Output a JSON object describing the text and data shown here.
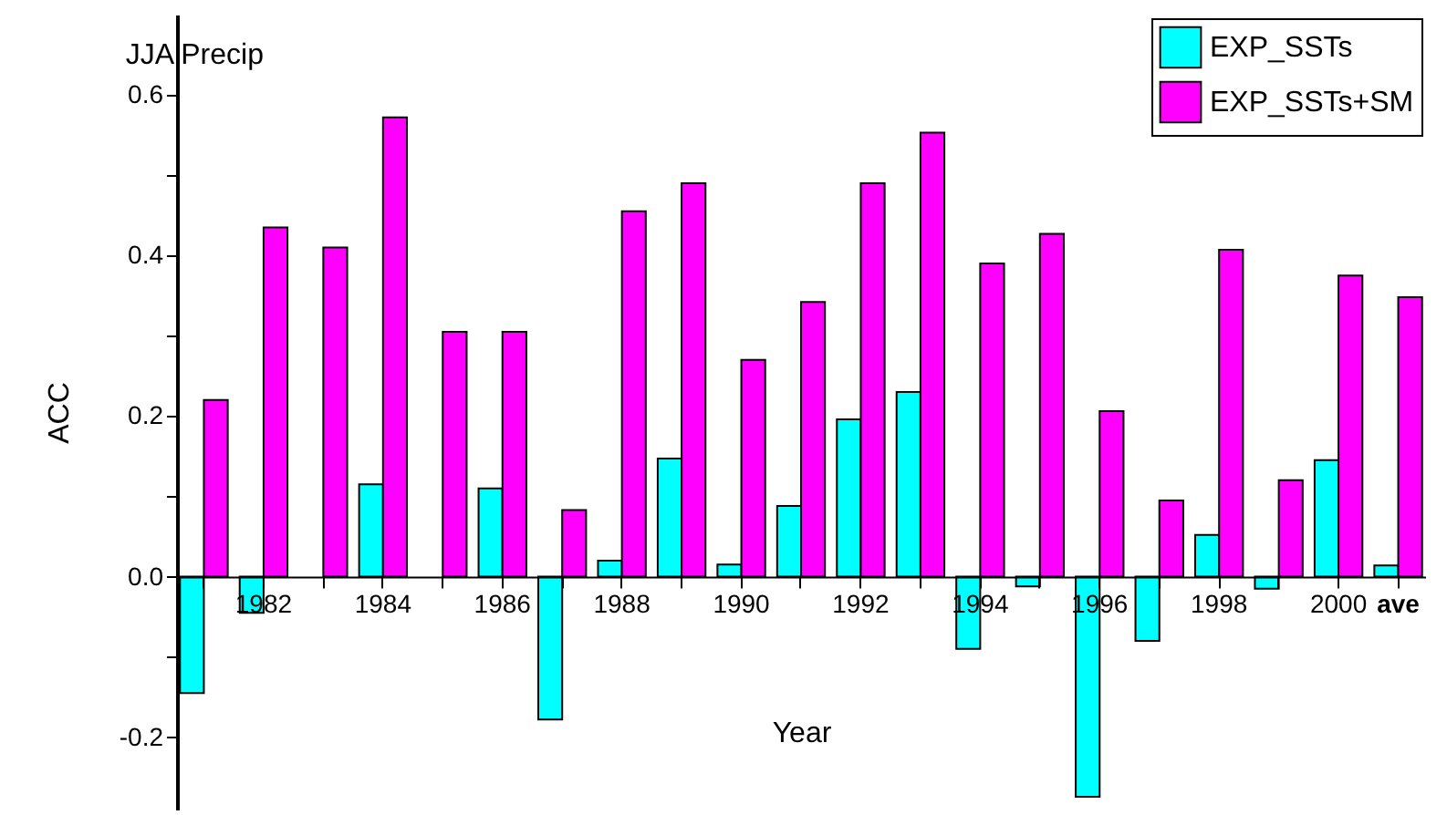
{
  "chart_data": {
    "type": "bar",
    "title": "JJA Precip",
    "xlabel": "Year",
    "ylabel": "ACC",
    "categories": [
      null,
      "1982",
      null,
      "1984",
      null,
      "1986",
      null,
      "1988",
      null,
      "1990",
      null,
      "1992",
      null,
      "1994",
      null,
      "1996",
      null,
      "1998",
      null,
      "2000",
      "ave"
    ],
    "series": [
      {
        "name": "EXP_SSTs",
        "color": "#00ffff",
        "values": [
          -0.145,
          -0.045,
          null,
          0.115,
          null,
          0.11,
          -0.178,
          0.02,
          0.147,
          0.015,
          0.088,
          0.196,
          0.23,
          -0.09,
          -0.012,
          -0.274,
          -0.08,
          0.052,
          -0.015,
          0.145,
          0.014
        ]
      },
      {
        "name": "EXP_SSTs+SM",
        "color": "#ff00ff",
        "values": [
          0.22,
          0.435,
          0.41,
          0.572,
          0.305,
          0.305,
          0.083,
          0.455,
          0.49,
          0.27,
          0.342,
          0.49,
          0.553,
          0.39,
          0.427,
          0.206,
          0.095,
          0.407,
          0.12,
          0.375,
          0.348
        ]
      }
    ],
    "ylim": [
      -0.29,
      0.7
    ],
    "yticks": [
      {
        "value": -0.2,
        "label": "-0.2"
      },
      {
        "value": -0.1,
        "label": null
      },
      {
        "value": 0,
        "label": "0.0"
      },
      {
        "value": 0.1,
        "label": null
      },
      {
        "value": 0.2,
        "label": "0.2"
      },
      {
        "value": 0.3,
        "label": null
      },
      {
        "value": 0.4,
        "label": "0.4"
      },
      {
        "value": 0.5,
        "label": null
      },
      {
        "value": 0.6,
        "label": "0.6"
      }
    ],
    "grid": false,
    "legend": "top right"
  }
}
